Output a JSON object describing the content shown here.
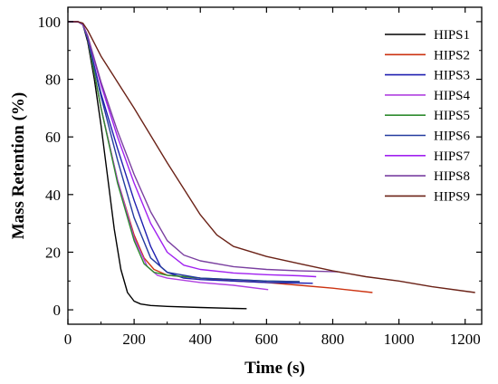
{
  "chart_data": {
    "type": "line",
    "title": "",
    "xlabel": "Time (s)",
    "ylabel": "Mass Retention (%)",
    "xlim": [
      0,
      1250
    ],
    "ylim": [
      -5,
      105
    ],
    "xticks": [
      0,
      200,
      400,
      600,
      800,
      1000,
      1200
    ],
    "yticks": [
      0,
      20,
      40,
      60,
      80,
      100
    ],
    "xtick_labels": [
      "0",
      "200",
      "400",
      "600",
      "800",
      "1000",
      "1200"
    ],
    "ytick_labels": [
      "0",
      "20",
      "40",
      "60",
      "80",
      "100"
    ],
    "grid": false,
    "legend_position": "top-right",
    "series": [
      {
        "name": "HIPS1",
        "color": "#000000",
        "x": [
          0,
          30,
          45,
          60,
          80,
          100,
          120,
          140,
          160,
          180,
          200,
          220,
          250,
          300,
          400,
          500,
          540
        ],
        "y": [
          100,
          100,
          99,
          93,
          80,
          64,
          46,
          28,
          14,
          6,
          3,
          2,
          1.5,
          1.2,
          0.8,
          0.5,
          0.4
        ]
      },
      {
        "name": "HIPS2",
        "color": "#cc3311",
        "x": [
          0,
          30,
          45,
          60,
          100,
          150,
          200,
          230,
          260,
          300,
          400,
          500,
          600,
          700,
          800,
          920
        ],
        "y": [
          100,
          100,
          99,
          94,
          70,
          45,
          26,
          18,
          14,
          12,
          11,
          10,
          9.5,
          8.5,
          7.5,
          6
        ]
      },
      {
        "name": "HIPS3",
        "color": "#1f1fb0",
        "x": [
          0,
          30,
          45,
          60,
          100,
          150,
          200,
          250,
          280,
          300,
          350,
          400,
          500,
          600,
          700,
          740
        ],
        "y": [
          100,
          100,
          99,
          94,
          75,
          56,
          38,
          22,
          15,
          13,
          11,
          10.5,
          10,
          9.5,
          9.3,
          9.2
        ]
      },
      {
        "name": "HIPS4",
        "color": "#b040e0",
        "x": [
          0,
          30,
          45,
          60,
          100,
          150,
          200,
          240,
          270,
          300,
          400,
          500,
          605
        ],
        "y": [
          100,
          100,
          99,
          94,
          70,
          45,
          25,
          15,
          12,
          11,
          9.5,
          8.5,
          7
        ]
      },
      {
        "name": "HIPS5",
        "color": "#2e8b2e",
        "x": [
          0,
          30,
          45,
          60,
          100,
          150,
          200,
          230,
          260,
          300,
          400,
          500,
          600,
          700
        ],
        "y": [
          100,
          100,
          99,
          94,
          70,
          44,
          24,
          16,
          13,
          12,
          11,
          10.5,
          10,
          9.8
        ]
      },
      {
        "name": "HIPS6",
        "color": "#243a9e",
        "x": [
          0,
          30,
          45,
          60,
          100,
          150,
          200,
          250,
          300,
          350,
          400,
          500,
          600,
          700
        ],
        "y": [
          100,
          100,
          99,
          94,
          74,
          52,
          32,
          18,
          13,
          12,
          11,
          10.5,
          10,
          9.8
        ]
      },
      {
        "name": "HIPS7",
        "color": "#a020f0",
        "x": [
          0,
          30,
          45,
          60,
          100,
          150,
          200,
          250,
          300,
          350,
          400,
          500,
          600,
          700,
          750
        ],
        "y": [
          100,
          100,
          99,
          95,
          78,
          60,
          44,
          30,
          20,
          15.5,
          14,
          12.8,
          12.2,
          11.8,
          11.5
        ]
      },
      {
        "name": "HIPS8",
        "color": "#7a3fa0",
        "x": [
          0,
          30,
          45,
          60,
          100,
          150,
          200,
          250,
          300,
          350,
          400,
          500,
          600,
          700,
          815
        ],
        "y": [
          100,
          100,
          99,
          95,
          79,
          62,
          47,
          34,
          24,
          19,
          17,
          15,
          14,
          13.5,
          13.2
        ]
      },
      {
        "name": "HIPS9",
        "color": "#6b2217",
        "x": [
          0,
          30,
          45,
          60,
          100,
          200,
          300,
          400,
          450,
          500,
          600,
          700,
          800,
          900,
          1000,
          1100,
          1230
        ],
        "y": [
          100,
          100,
          99.5,
          97,
          88,
          70,
          51,
          33,
          26,
          22,
          18.5,
          16,
          13.5,
          11.5,
          10,
          8,
          6
        ]
      }
    ]
  }
}
